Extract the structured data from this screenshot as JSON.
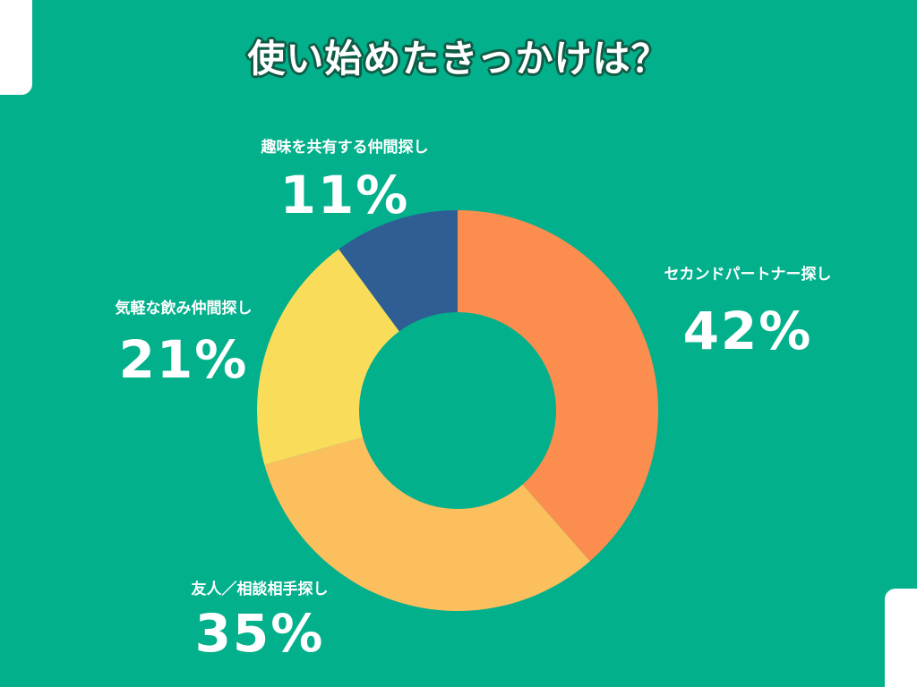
{
  "title": "使い始めたきっかけは？",
  "chart_data": {
    "type": "pie",
    "donut": true,
    "slices": [
      {
        "label": "セカンドパートナー探し",
        "value": 42,
        "display": "42%",
        "color": "#fb8d4f"
      },
      {
        "label": "友人／相談相手探し",
        "value": 35,
        "display": "35%",
        "color": "#fcbf5e"
      },
      {
        "label": "気軽な飲み仲間探し",
        "value": 21,
        "display": "21%",
        "color": "#fadc5b"
      },
      {
        "label": "趣味を共有する仲間探し",
        "value": 11,
        "display": "11%",
        "color": "#2e5e93"
      }
    ]
  }
}
